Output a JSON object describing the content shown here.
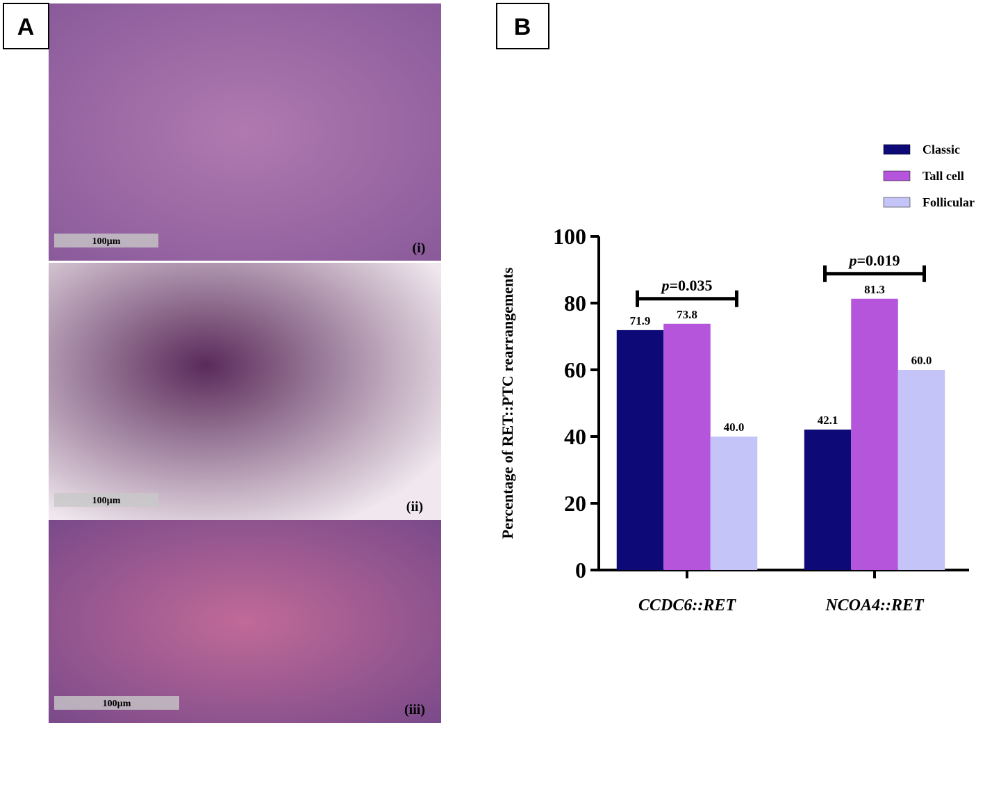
{
  "panels": {
    "a": "A",
    "b": "B",
    "scale_bars": [
      "100µm",
      "100µm",
      "100µm"
    ],
    "image_labels": [
      "(i)",
      "(ii)",
      "(iii)"
    ]
  },
  "chart_data": {
    "type": "bar",
    "y_label": "Percentage of RET::PTC rearrangements",
    "categories": [
      "CCDC6::RET",
      "NCOA4::RET"
    ],
    "series": [
      {
        "name": "Classic",
        "color": "#0d0a78",
        "values": [
          71.9,
          42.1
        ],
        "value_labels": [
          "71.9",
          "42.1"
        ]
      },
      {
        "name": "Tall cell",
        "color": "#b455dc",
        "values": [
          73.8,
          81.3
        ],
        "value_labels": [
          "73.8",
          "81.3"
        ]
      },
      {
        "name": "Follicular",
        "color": "#c4c4f8",
        "values": [
          40,
          60
        ],
        "value_labels": [
          "40.0",
          "60.0"
        ]
      }
    ],
    "annotations": [
      "p=0.035",
      "p=0.019"
    ],
    "ylim": [
      0,
      100
    ],
    "yticks": [
      0,
      20,
      40,
      60,
      80,
      100
    ],
    "grid": false,
    "legend": "top-right"
  }
}
